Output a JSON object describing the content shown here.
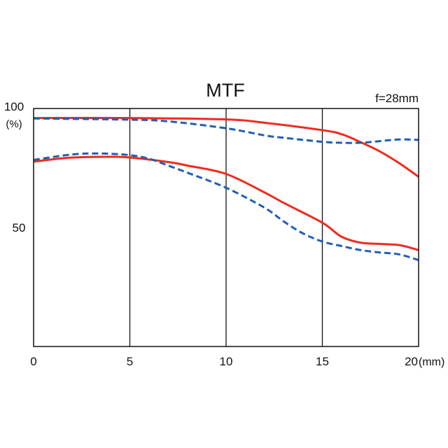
{
  "chart_data": {
    "type": "line",
    "title": "MTF",
    "subtitle": "f=28mm",
    "xlabel_unit": "(mm)",
    "ylabel_unit": "(%)",
    "xlim": [
      0,
      20
    ],
    "ylim": [
      0,
      100
    ],
    "x_ticks": [
      "0",
      "5",
      "10",
      "15",
      "20"
    ],
    "y_ticks": [
      "100",
      "50"
    ],
    "grid": "vertical lines at x ticks",
    "colors": {
      "solid": "#f02a1e",
      "dashed": "#1f5fb4"
    },
    "series": [
      {
        "style": "solid",
        "color": "#f02a1e",
        "x": [
          0,
          5,
          10,
          12,
          15,
          16,
          17,
          18,
          19,
          20
        ],
        "y": [
          96,
          96,
          95.4,
          94,
          90.9,
          89.2,
          85.8,
          81.9,
          77,
          71.3
        ]
      },
      {
        "style": "dashed",
        "color": "#1f5fb4",
        "x": [
          0,
          5,
          7,
          10,
          12,
          13,
          15,
          16,
          17,
          18,
          19,
          20
        ],
        "y": [
          95.8,
          95.3,
          94.6,
          91.7,
          88.7,
          87.7,
          86,
          85.6,
          85.6,
          86.3,
          87,
          86.8
        ]
      },
      {
        "style": "solid",
        "color": "#f02a1e",
        "x": [
          0,
          2,
          4,
          5,
          7,
          8,
          10,
          12,
          13,
          15,
          16,
          17,
          18,
          19,
          20
        ],
        "y": [
          77.7,
          79.4,
          79.7,
          79.4,
          77.5,
          76,
          72.5,
          64.7,
          60.3,
          52,
          46.1,
          43.6,
          43.1,
          42.6,
          40.5
        ]
      },
      {
        "style": "dashed",
        "color": "#1f5fb4",
        "x": [
          0,
          2,
          3.5,
          5,
          6,
          7,
          8,
          10,
          12,
          13,
          14,
          15,
          16,
          17,
          18,
          19,
          20
        ],
        "y": [
          78.4,
          80.7,
          81.1,
          80.4,
          78.9,
          76,
          73,
          66.7,
          58.3,
          52.5,
          47.5,
          44.1,
          42.2,
          40.5,
          39.5,
          38.7,
          36.3
        ]
      }
    ]
  }
}
